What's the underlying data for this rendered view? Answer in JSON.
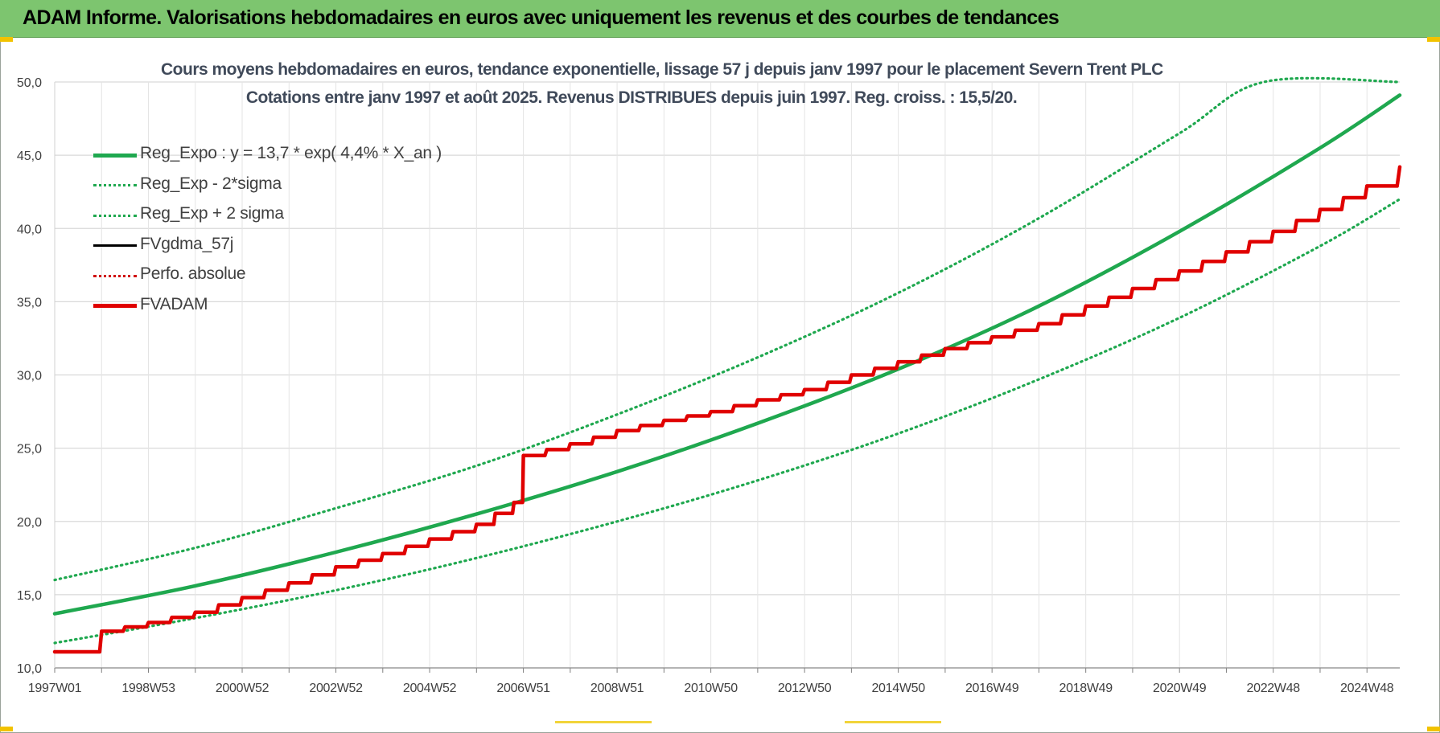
{
  "header": {
    "title": "ADAM Informe. Valorisations hebdomadaires en euros avec uniquement les revenus et des courbes de tendances"
  },
  "colors": {
    "header_bg": "#7dc56f",
    "reg_expo": "#1fa84f",
    "fvgdma": "#000000",
    "perfo": "#d00000",
    "fvadam": "#e00000",
    "grid": "#d9d9d9"
  },
  "chart_data": {
    "type": "line",
    "title": [
      "Cours moyens hebdomadaires en euros, tendance exponentielle, lissage 57 j depuis janv 1997 pour le placement Severn Trent PLC",
      "Cotations entre janv 1997 et août 2025. Revenus DISTRIBUES depuis juin 1997. Reg. croiss. : 15,5/20."
    ],
    "xlabel": "",
    "ylabel": "",
    "x_start_year": 1997,
    "x_end_year": 2025.7,
    "ylim": [
      10,
      50
    ],
    "yticks": [
      "10,0",
      "15,0",
      "20,0",
      "25,0",
      "30,0",
      "35,0",
      "40,0",
      "45,0",
      "50,0"
    ],
    "xticks": [
      {
        "label": "1997W01",
        "year": 1997.0
      },
      {
        "label": "1998W53",
        "year": 1999.0
      },
      {
        "label": "2000W52",
        "year": 2001.0
      },
      {
        "label": "2002W52",
        "year": 2003.0
      },
      {
        "label": "2004W52",
        "year": 2005.0
      },
      {
        "label": "2006W51",
        "year": 2007.0
      },
      {
        "label": "2008W51",
        "year": 2009.0
      },
      {
        "label": "2010W50",
        "year": 2011.0
      },
      {
        "label": "2012W50",
        "year": 2013.0
      },
      {
        "label": "2014W50",
        "year": 2015.0
      },
      {
        "label": "2016W49",
        "year": 2017.0
      },
      {
        "label": "2018W49",
        "year": 2019.0
      },
      {
        "label": "2020W49",
        "year": 2021.0
      },
      {
        "label": "2022W48",
        "year": 2023.0
      },
      {
        "label": "2024W48",
        "year": 2025.0
      }
    ],
    "grid": true,
    "legend_position": "top-left",
    "series": [
      {
        "name": "Reg_Expo : y = 13,7 * exp( 4,4% *  X_an )",
        "style": "solid",
        "color": "#1fa84f",
        "x": [
          1997.0,
          2000.0,
          2003.0,
          2006.0,
          2009.0,
          2012.0,
          2015.0,
          2018.0,
          2021.0,
          2024.0,
          2025.7
        ],
        "y": [
          13.7,
          15.6,
          17.9,
          20.5,
          23.4,
          26.7,
          30.4,
          34.7,
          39.8,
          45.5,
          49.1
        ]
      },
      {
        "name": "Reg_Exp - 2*sigma",
        "style": "dotted",
        "color": "#1fa84f",
        "x": [
          1997.0,
          2000.0,
          2003.0,
          2006.0,
          2009.0,
          2012.0,
          2015.0,
          2018.0,
          2021.0,
          2024.0,
          2025.7
        ],
        "y": [
          11.7,
          13.4,
          15.3,
          17.5,
          20.0,
          22.8,
          26.0,
          29.7,
          33.9,
          38.8,
          42.0
        ]
      },
      {
        "name": "Reg_Exp + 2 sigma",
        "style": "dotted",
        "color": "#1fa84f",
        "x": [
          1997.0,
          2000.0,
          2003.0,
          2006.0,
          2009.0,
          2012.0,
          2015.0,
          2018.0,
          2021.0,
          2022.8,
          2025.7
        ],
        "y": [
          16.0,
          18.2,
          20.9,
          23.8,
          27.3,
          31.2,
          35.6,
          40.7,
          46.5,
          50.0,
          50.0
        ]
      },
      {
        "name": "FVgdma_57j",
        "style": "solid",
        "color": "#000000",
        "x": [
          1997.0,
          1997.5,
          1998.0,
          1999.0,
          2000.0,
          2001.0,
          2002.0,
          2003.0,
          2004.0,
          2005.0,
          2006.0,
          2006.8,
          2007.0,
          2008.0,
          2009.0,
          2010.0,
          2011.0,
          2012.0,
          2013.0,
          2014.0,
          2015.0,
          2016.0,
          2017.0,
          2018.0,
          2019.0,
          2020.0,
          2021.0,
          2022.0,
          2023.0,
          2024.0,
          2025.0,
          2025.7
        ],
        "y": [
          11.1,
          11.1,
          12.5,
          13.1,
          13.8,
          14.8,
          15.8,
          16.9,
          17.8,
          18.8,
          19.8,
          21.3,
          24.5,
          25.3,
          26.2,
          26.9,
          27.5,
          28.3,
          29.0,
          30.0,
          30.9,
          31.8,
          32.6,
          33.5,
          34.7,
          35.9,
          37.1,
          38.4,
          39.8,
          41.3,
          42.9,
          44.2
        ]
      },
      {
        "name": "Perfo. absolue",
        "style": "dotted",
        "color": "#d00000",
        "x": [],
        "y": []
      },
      {
        "name": "FVADAM",
        "style": "step",
        "color": "#e00000",
        "x": [
          1997.0,
          1997.5,
          1998.0,
          1999.0,
          2000.0,
          2001.0,
          2002.0,
          2003.0,
          2004.0,
          2005.0,
          2006.0,
          2006.8,
          2007.0,
          2008.0,
          2009.0,
          2010.0,
          2011.0,
          2012.0,
          2013.0,
          2014.0,
          2015.0,
          2016.0,
          2017.0,
          2018.0,
          2019.0,
          2020.0,
          2021.0,
          2022.0,
          2023.0,
          2024.0,
          2025.0,
          2025.7
        ],
        "y": [
          11.1,
          11.1,
          12.5,
          13.1,
          13.8,
          14.8,
          15.8,
          16.9,
          17.8,
          18.8,
          19.8,
          21.3,
          24.5,
          25.3,
          26.2,
          26.9,
          27.5,
          28.3,
          29.0,
          30.0,
          30.9,
          31.8,
          32.6,
          33.5,
          34.7,
          35.9,
          37.1,
          38.4,
          39.8,
          41.3,
          42.9,
          44.2
        ]
      }
    ]
  }
}
